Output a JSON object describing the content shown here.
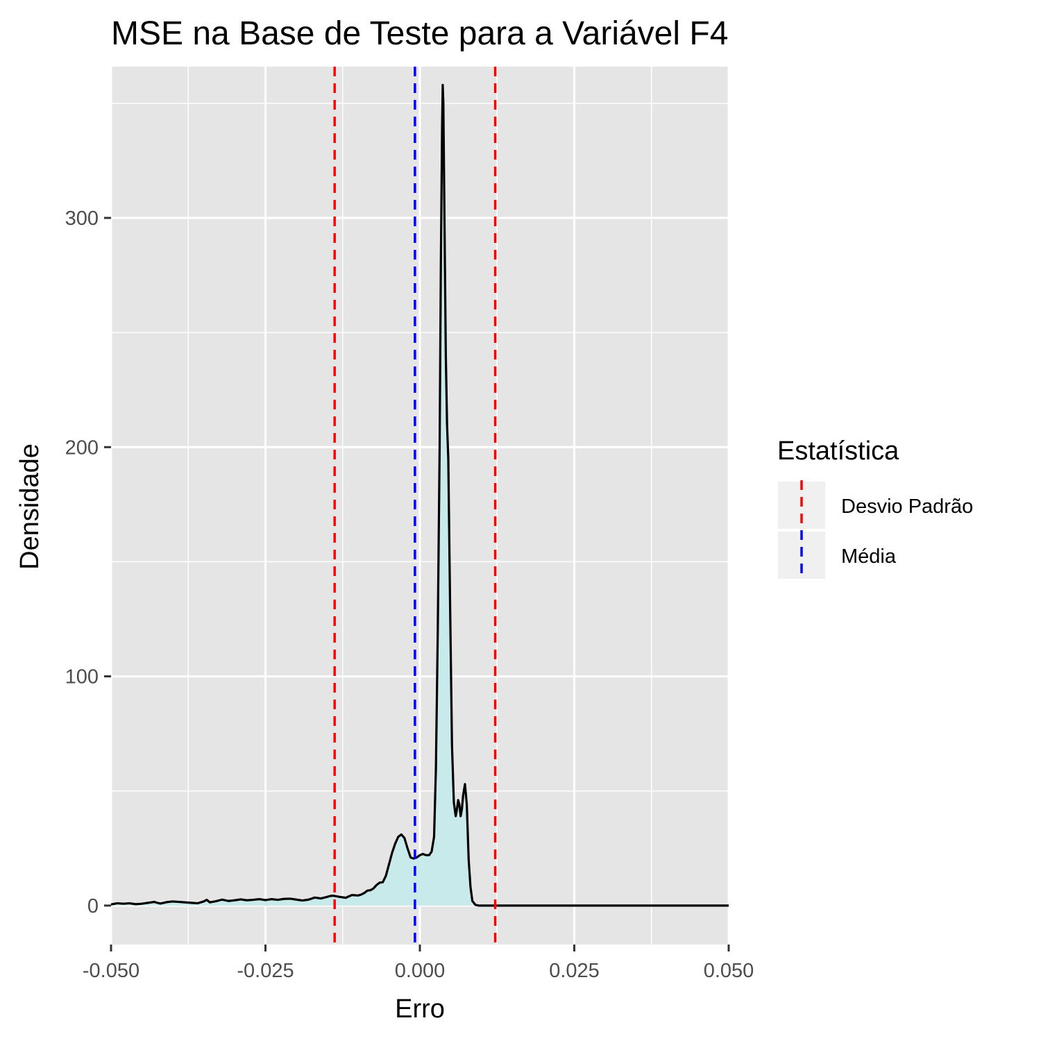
{
  "chart_data": {
    "type": "area",
    "title": "MSE na Base de Teste para a Variável F4",
    "xlabel": "Erro",
    "ylabel": "Densidade",
    "xlim": [
      -0.05,
      0.05
    ],
    "ylim": [
      -17,
      366
    ],
    "x_ticks": [
      -0.05,
      -0.025,
      0.0,
      0.025,
      0.05
    ],
    "x_tick_labels": [
      "-0.050",
      "-0.025",
      "0.000",
      "0.025",
      "0.050"
    ],
    "y_ticks": [
      0,
      100,
      200,
      300
    ],
    "y_tick_labels": [
      "0",
      "100",
      "200",
      "300"
    ],
    "grid": true,
    "density": {
      "fill_color": "#c9eaea",
      "line_color": "#000000",
      "points": [
        [
          -0.05,
          0.5
        ],
        [
          -0.049,
          1.0
        ],
        [
          -0.048,
          0.8
        ],
        [
          -0.047,
          1.0
        ],
        [
          -0.046,
          0.6
        ],
        [
          -0.045,
          0.8
        ],
        [
          -0.044,
          1.2
        ],
        [
          -0.043,
          1.6
        ],
        [
          -0.0425,
          1.2
        ],
        [
          -0.042,
          0.9
        ],
        [
          -0.041,
          1.5
        ],
        [
          -0.04,
          1.8
        ],
        [
          -0.039,
          1.6
        ],
        [
          -0.038,
          1.4
        ],
        [
          -0.037,
          1.2
        ],
        [
          -0.036,
          1.0
        ],
        [
          -0.035,
          1.8
        ],
        [
          -0.0345,
          2.5
        ],
        [
          -0.034,
          1.4
        ],
        [
          -0.033,
          1.9
        ],
        [
          -0.032,
          2.6
        ],
        [
          -0.031,
          2.0
        ],
        [
          -0.03,
          2.3
        ],
        [
          -0.029,
          2.7
        ],
        [
          -0.028,
          2.3
        ],
        [
          -0.027,
          2.5
        ],
        [
          -0.026,
          2.8
        ],
        [
          -0.025,
          2.4
        ],
        [
          -0.024,
          2.8
        ],
        [
          -0.023,
          2.5
        ],
        [
          -0.022,
          2.9
        ],
        [
          -0.021,
          3.0
        ],
        [
          -0.02,
          2.6
        ],
        [
          -0.019,
          2.2
        ],
        [
          -0.018,
          2.6
        ],
        [
          -0.017,
          3.5
        ],
        [
          -0.016,
          3.1
        ],
        [
          -0.015,
          3.8
        ],
        [
          -0.0145,
          4.2
        ],
        [
          -0.014,
          4.3
        ],
        [
          -0.013,
          3.8
        ],
        [
          -0.012,
          3.4
        ],
        [
          -0.0115,
          4.0
        ],
        [
          -0.011,
          4.6
        ],
        [
          -0.01,
          4.4
        ],
        [
          -0.0095,
          4.8
        ],
        [
          -0.009,
          5.5
        ],
        [
          -0.0085,
          6.5
        ],
        [
          -0.008,
          6.7
        ],
        [
          -0.0075,
          7.5
        ],
        [
          -0.007,
          9.0
        ],
        [
          -0.0065,
          10.0
        ],
        [
          -0.006,
          10.2
        ],
        [
          -0.0055,
          13.0
        ],
        [
          -0.005,
          18.0
        ],
        [
          -0.0045,
          23.0
        ],
        [
          -0.004,
          27.0
        ],
        [
          -0.0035,
          30.0
        ],
        [
          -0.003,
          31.0
        ],
        [
          -0.0025,
          29.5
        ],
        [
          -0.002,
          25.0
        ],
        [
          -0.0015,
          21.0
        ],
        [
          -0.001,
          20.5
        ],
        [
          -0.0005,
          21.0
        ],
        [
          0.0,
          22.0
        ],
        [
          0.0005,
          22.5
        ],
        [
          0.001,
          22.0
        ],
        [
          0.0015,
          22.0
        ],
        [
          0.0019,
          23.5
        ],
        [
          0.0023,
          30.0
        ],
        [
          0.0026,
          60.0
        ],
        [
          0.0029,
          120.0
        ],
        [
          0.0032,
          200.0
        ],
        [
          0.0034,
          280.0
        ],
        [
          0.0036,
          340.0
        ],
        [
          0.0037,
          358.0
        ],
        [
          0.0038,
          350.0
        ],
        [
          0.004,
          295.0
        ],
        [
          0.0042,
          240.0
        ],
        [
          0.0044,
          210.0
        ],
        [
          0.0046,
          195.0
        ],
        [
          0.0049,
          130.0
        ],
        [
          0.0052,
          70.0
        ],
        [
          0.0055,
          45.0
        ],
        [
          0.0058,
          39.0
        ],
        [
          0.006,
          42.0
        ],
        [
          0.0062,
          46.0
        ],
        [
          0.0064,
          44.0
        ],
        [
          0.0066,
          39.0
        ],
        [
          0.0068,
          42.0
        ],
        [
          0.007,
          48.0
        ],
        [
          0.0073,
          53.0
        ],
        [
          0.0076,
          44.0
        ],
        [
          0.0079,
          20.0
        ],
        [
          0.0082,
          8.0
        ],
        [
          0.0085,
          2.0
        ],
        [
          0.009,
          0.3
        ],
        [
          0.0095,
          0.0
        ],
        [
          0.015,
          0.0
        ],
        [
          0.03,
          0.0
        ],
        [
          0.05,
          0.0
        ]
      ]
    },
    "vlines": [
      {
        "name": "Desvio Padrão",
        "x": -0.0138,
        "color": "#ff0000"
      },
      {
        "name": "Média",
        "x": -0.0008,
        "color": "#0000ff"
      },
      {
        "name": "Desvio Padrão",
        "x": 0.0122,
        "color": "#ff0000"
      }
    ],
    "legend": {
      "title": "Estatística",
      "placement": "right",
      "entries": [
        {
          "label": "Desvio Padrão",
          "color": "#ff0000"
        },
        {
          "label": "Média",
          "color": "#0000ff"
        }
      ]
    },
    "colors": {
      "panel_background": "#e5e5e5",
      "grid_line": "#ffffff",
      "legend_key_background": "#f0f0f0"
    }
  }
}
